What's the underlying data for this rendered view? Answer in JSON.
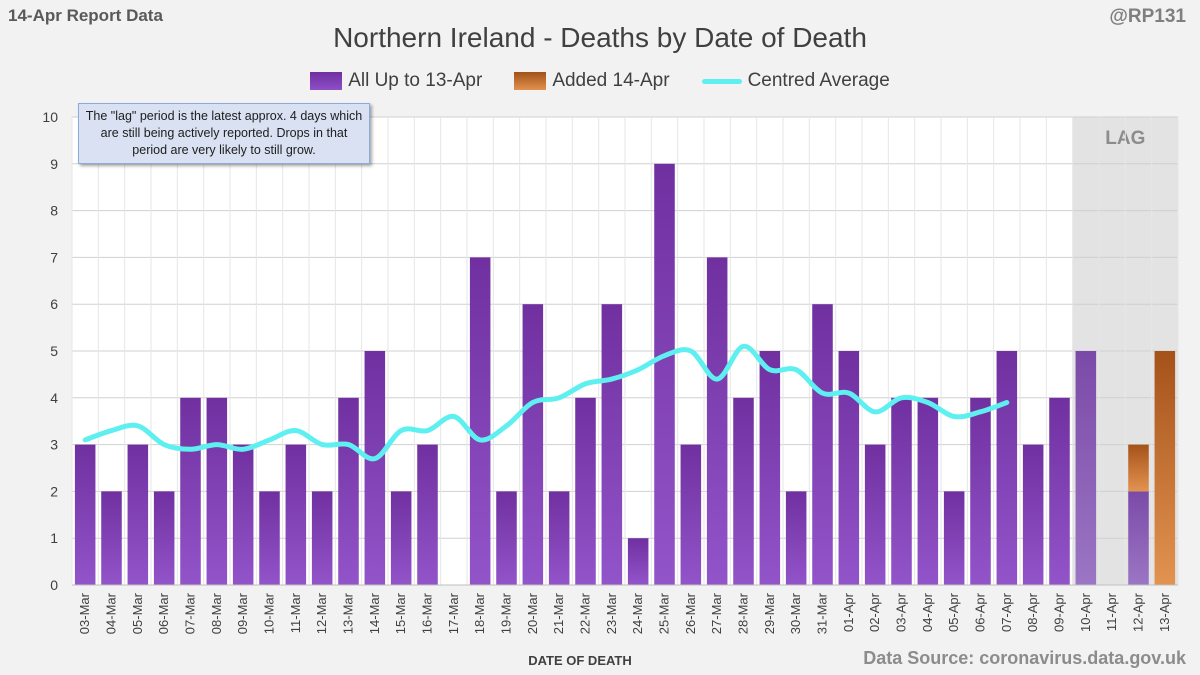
{
  "header": {
    "report_label": "14-Apr Report Data",
    "handle": "@RP131"
  },
  "footer": {
    "source": "Data Source: coronavirus.data.gov.uk"
  },
  "note": {
    "text": "The \"lag\" period is the latest approx. 4 days which are still being actively reported. Drops in that period are very likely to still grow."
  },
  "chart_data": {
    "type": "bar",
    "title": "Northern Ireland - Deaths by Date of Death",
    "xlabel": "DATE OF DEATH",
    "ylabel": "",
    "ylim": [
      0,
      10
    ],
    "yticks": [
      0,
      1,
      2,
      3,
      4,
      5,
      6,
      7,
      8,
      9,
      10
    ],
    "grid": true,
    "legend_position": "top-center",
    "lag_label": "LAG",
    "lag_start_category": "10-Apr",
    "categories": [
      "03-Mar",
      "04-Mar",
      "05-Mar",
      "06-Mar",
      "07-Mar",
      "08-Mar",
      "09-Mar",
      "10-Mar",
      "11-Mar",
      "12-Mar",
      "13-Mar",
      "14-Mar",
      "15-Mar",
      "16-Mar",
      "17-Mar",
      "18-Mar",
      "19-Mar",
      "20-Mar",
      "21-Mar",
      "22-Mar",
      "23-Mar",
      "24-Mar",
      "25-Mar",
      "26-Mar",
      "27-Mar",
      "28-Mar",
      "29-Mar",
      "30-Mar",
      "31-Mar",
      "01-Apr",
      "02-Apr",
      "03-Apr",
      "04-Apr",
      "05-Apr",
      "06-Apr",
      "07-Apr",
      "08-Apr",
      "09-Apr",
      "10-Apr",
      "11-Apr",
      "12-Apr",
      "13-Apr"
    ],
    "series": [
      {
        "name": "All Up to 13-Apr",
        "kind": "bar",
        "color": "#7030a0",
        "values": [
          3,
          2,
          3,
          2,
          4,
          4,
          3,
          2,
          3,
          2,
          4,
          5,
          2,
          3,
          0,
          7,
          2,
          6,
          2,
          4,
          6,
          1,
          9,
          3,
          7,
          4,
          5,
          2,
          6,
          5,
          3,
          4,
          4,
          2,
          4,
          5,
          3,
          4,
          5,
          0,
          2,
          0
        ]
      },
      {
        "name": "Added 14-Apr",
        "kind": "bar-stacked",
        "color": "#c55a11",
        "values": [
          0,
          0,
          0,
          0,
          0,
          0,
          0,
          0,
          0,
          0,
          0,
          0,
          0,
          0,
          0,
          0,
          0,
          0,
          0,
          0,
          0,
          0,
          0,
          0,
          0,
          0,
          0,
          0,
          0,
          0,
          0,
          0,
          0,
          0,
          0,
          0,
          0,
          0,
          0,
          0,
          1,
          5
        ]
      },
      {
        "name": "Centred Average",
        "kind": "line",
        "color": "#5ef0f0",
        "values": [
          3.1,
          3.3,
          3.4,
          3.0,
          2.9,
          3.0,
          2.9,
          3.1,
          3.3,
          3.0,
          3.0,
          2.7,
          3.3,
          3.3,
          3.6,
          3.1,
          3.4,
          3.9,
          4.0,
          4.3,
          4.4,
          4.6,
          4.9,
          5.0,
          4.4,
          5.1,
          4.6,
          4.6,
          4.1,
          4.1,
          3.7,
          4.0,
          3.9,
          3.6,
          3.7,
          3.9,
          null,
          null,
          null,
          null,
          null,
          null
        ]
      }
    ]
  }
}
